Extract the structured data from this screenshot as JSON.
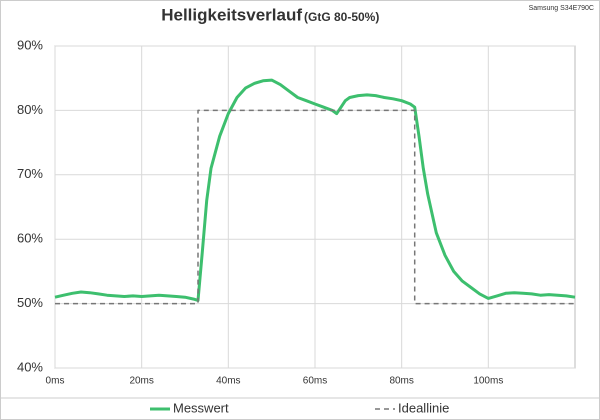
{
  "chart_data": {
    "type": "line",
    "title": "Helligkeitsverlauf",
    "subtitle": "(GtG 80-50%)",
    "note": "Samsung S34E790C",
    "xlim": [
      0,
      120
    ],
    "xticks": [
      {
        "value": 0,
        "label": "0ms"
      },
      {
        "value": 20,
        "label": "20ms"
      },
      {
        "value": 40,
        "label": "40ms"
      },
      {
        "value": 60,
        "label": "60ms"
      },
      {
        "value": 80,
        "label": "80ms"
      },
      {
        "value": 100,
        "label": "100ms"
      }
    ],
    "ylim": [
      40,
      90
    ],
    "yticks": [
      {
        "value": 40,
        "label": "40%"
      },
      {
        "value": 50,
        "label": "50%"
      },
      {
        "value": 60,
        "label": "60%"
      },
      {
        "value": 70,
        "label": "70%"
      },
      {
        "value": 80,
        "label": "80%"
      },
      {
        "value": 90,
        "label": "90%"
      }
    ],
    "grid": true,
    "legend": "bottom",
    "series": [
      {
        "name": "Messwert",
        "color": "#3dbf6e",
        "x": [
          0,
          2,
          4,
          6,
          8,
          10,
          12,
          14,
          16,
          18,
          20,
          22,
          24,
          26,
          28,
          30,
          32,
          33,
          34,
          35,
          36,
          38,
          40,
          42,
          44,
          46,
          48,
          50,
          52,
          54,
          56,
          58,
          60,
          62,
          64,
          65,
          66,
          67,
          68,
          70,
          72,
          74,
          76,
          78,
          80,
          82,
          83,
          84,
          85,
          86,
          88,
          90,
          92,
          94,
          96,
          98,
          100,
          102,
          104,
          106,
          108,
          110,
          112,
          114,
          116,
          118,
          120
        ],
        "values": [
          51,
          51.3,
          51.6,
          51.8,
          51.7,
          51.5,
          51.3,
          51.2,
          51.1,
          51.2,
          51.1,
          51.2,
          51.3,
          51.2,
          51.1,
          51,
          50.7,
          50.5,
          58,
          66,
          71,
          76,
          79.5,
          82,
          83.5,
          84.2,
          84.6,
          84.7,
          84,
          83,
          82,
          81.5,
          81,
          80.5,
          80,
          79.5,
          80.5,
          81.5,
          82,
          82.3,
          82.4,
          82.3,
          82,
          81.8,
          81.5,
          81,
          80.5,
          76,
          71,
          67,
          61,
          57.5,
          55,
          53.5,
          52.5,
          51.5,
          50.8,
          51.2,
          51.6,
          51.7,
          51.6,
          51.5,
          51.3,
          51.4,
          51.3,
          51.2,
          51
        ]
      },
      {
        "name": "Ideallinie",
        "color": "#777777",
        "dashed": true,
        "x": [
          0,
          33,
          33,
          83,
          83,
          120
        ],
        "values": [
          50,
          50,
          80,
          80,
          50,
          50
        ]
      }
    ]
  }
}
